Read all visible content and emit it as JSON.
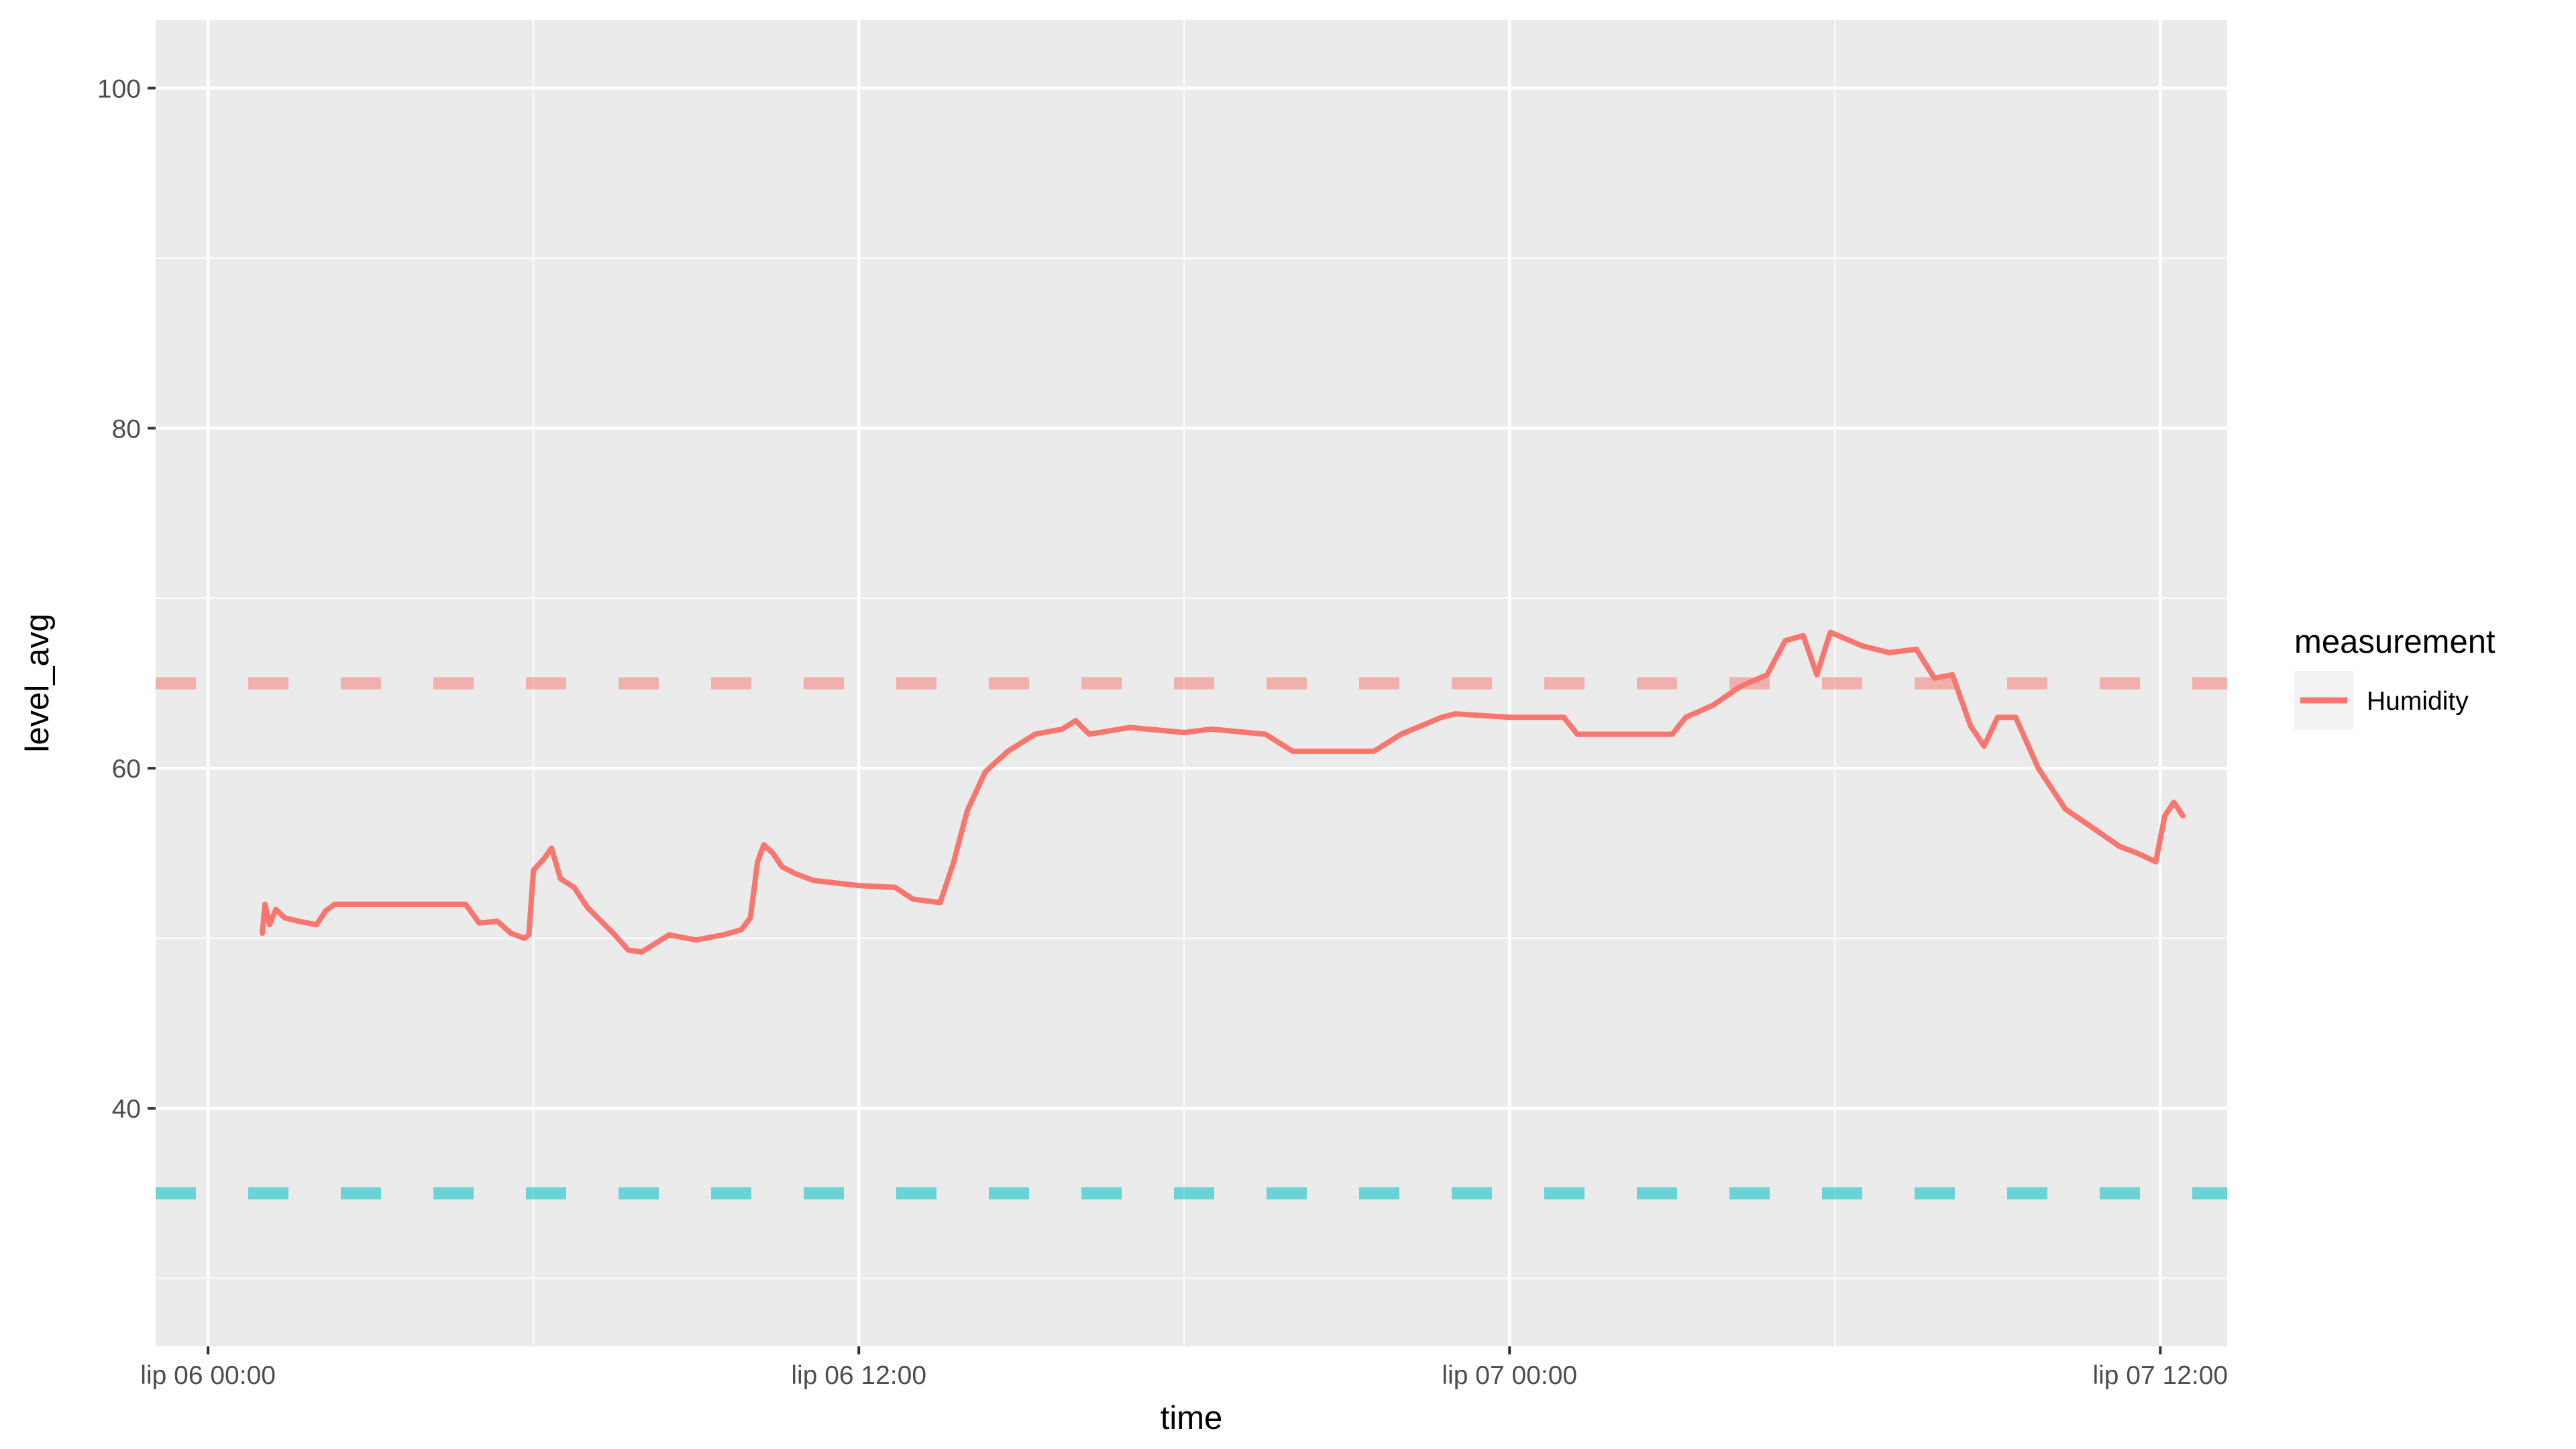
{
  "chart_data": {
    "type": "line",
    "xlabel": "time",
    "ylabel": "level_avg",
    "x_range": [
      "2017-07-05T23:02",
      "2017-07-07T13:14"
    ],
    "ylim": [
      26,
      104
    ],
    "x_ticks": [
      {
        "at": "2017-07-06T00:00",
        "label": "lip 06 00:00"
      },
      {
        "at": "2017-07-06T12:00",
        "label": "lip 06 12:00"
      },
      {
        "at": "2017-07-07T00:00",
        "label": "lip 07 00:00"
      },
      {
        "at": "2017-07-07T12:00",
        "label": "lip 07 12:00"
      }
    ],
    "x_minor_ticks": [
      "2017-07-06T06:00",
      "2017-07-06T18:00",
      "2017-07-07T06:00"
    ],
    "y_ticks": [
      40,
      60,
      80,
      100
    ],
    "y_minor_ticks": [
      30,
      50,
      70,
      90
    ],
    "grid": true,
    "legend": {
      "title": "measurement",
      "position": "right"
    },
    "series": [
      {
        "name": "Humidity",
        "color": "#F8766D",
        "points": [
          [
            "2017-07-06T01:00",
            50.3
          ],
          [
            "2017-07-06T01:03",
            52.0
          ],
          [
            "2017-07-06T01:08",
            50.8
          ],
          [
            "2017-07-06T01:15",
            51.7
          ],
          [
            "2017-07-06T01:25",
            51.2
          ],
          [
            "2017-07-06T01:40",
            51.0
          ],
          [
            "2017-07-06T02:00",
            50.8
          ],
          [
            "2017-07-06T02:10",
            51.6
          ],
          [
            "2017-07-06T02:20",
            52.0
          ],
          [
            "2017-07-06T03:00",
            52.0
          ],
          [
            "2017-07-06T04:00",
            52.0
          ],
          [
            "2017-07-06T04:45",
            52.0
          ],
          [
            "2017-07-06T05:00",
            50.9
          ],
          [
            "2017-07-06T05:20",
            51.0
          ],
          [
            "2017-07-06T05:35",
            50.3
          ],
          [
            "2017-07-06T05:50",
            50.0
          ],
          [
            "2017-07-06T05:55",
            50.2
          ],
          [
            "2017-07-06T06:00",
            54.0
          ],
          [
            "2017-07-06T06:12",
            54.7
          ],
          [
            "2017-07-06T06:20",
            55.3
          ],
          [
            "2017-07-06T06:30",
            53.5
          ],
          [
            "2017-07-06T06:45",
            53.0
          ],
          [
            "2017-07-06T07:00",
            51.8
          ],
          [
            "2017-07-06T07:15",
            51.0
          ],
          [
            "2017-07-06T07:30",
            50.2
          ],
          [
            "2017-07-06T07:45",
            49.3
          ],
          [
            "2017-07-06T08:00",
            49.2
          ],
          [
            "2017-07-06T08:30",
            50.2
          ],
          [
            "2017-07-06T09:00",
            49.9
          ],
          [
            "2017-07-06T09:30",
            50.2
          ],
          [
            "2017-07-06T09:50",
            50.5
          ],
          [
            "2017-07-06T10:00",
            51.2
          ],
          [
            "2017-07-06T10:08",
            54.5
          ],
          [
            "2017-07-06T10:15",
            55.5
          ],
          [
            "2017-07-06T10:25",
            55.0
          ],
          [
            "2017-07-06T10:35",
            54.2
          ],
          [
            "2017-07-06T10:50",
            53.8
          ],
          [
            "2017-07-06T11:10",
            53.4
          ],
          [
            "2017-07-06T12:00",
            53.1
          ],
          [
            "2017-07-06T12:40",
            53.0
          ],
          [
            "2017-07-06T13:00",
            52.3
          ],
          [
            "2017-07-06T13:30",
            52.1
          ],
          [
            "2017-07-06T13:45",
            54.5
          ],
          [
            "2017-07-06T14:00",
            57.5
          ],
          [
            "2017-07-06T14:20",
            59.8
          ],
          [
            "2017-07-06T14:45",
            61.0
          ],
          [
            "2017-07-06T15:15",
            62.0
          ],
          [
            "2017-07-06T15:45",
            62.3
          ],
          [
            "2017-07-06T16:00",
            62.8
          ],
          [
            "2017-07-06T16:15",
            62.0
          ],
          [
            "2017-07-06T17:00",
            62.4
          ],
          [
            "2017-07-06T18:00",
            62.1
          ],
          [
            "2017-07-06T18:30",
            62.3
          ],
          [
            "2017-07-06T19:30",
            62.0
          ],
          [
            "2017-07-06T20:00",
            61.0
          ],
          [
            "2017-07-06T21:30",
            61.0
          ],
          [
            "2017-07-06T22:00",
            62.0
          ],
          [
            "2017-07-06T22:45",
            63.0
          ],
          [
            "2017-07-06T23:00",
            63.2
          ],
          [
            "2017-07-07T00:00",
            63.0
          ],
          [
            "2017-07-07T01:00",
            63.0
          ],
          [
            "2017-07-07T01:15",
            62.0
          ],
          [
            "2017-07-07T02:00",
            62.0
          ],
          [
            "2017-07-07T03:00",
            62.0
          ],
          [
            "2017-07-07T03:15",
            63.0
          ],
          [
            "2017-07-07T03:45",
            63.7
          ],
          [
            "2017-07-07T04:15",
            64.8
          ],
          [
            "2017-07-07T04:45",
            65.5
          ],
          [
            "2017-07-07T05:05",
            67.5
          ],
          [
            "2017-07-07T05:25",
            67.8
          ],
          [
            "2017-07-07T05:40",
            65.5
          ],
          [
            "2017-07-07T05:55",
            68.0
          ],
          [
            "2017-07-07T06:30",
            67.2
          ],
          [
            "2017-07-07T07:00",
            66.8
          ],
          [
            "2017-07-07T07:30",
            67.0
          ],
          [
            "2017-07-07T07:50",
            65.3
          ],
          [
            "2017-07-07T08:10",
            65.5
          ],
          [
            "2017-07-07T08:30",
            62.5
          ],
          [
            "2017-07-07T08:45",
            61.3
          ],
          [
            "2017-07-07T09:00",
            63.0
          ],
          [
            "2017-07-07T09:20",
            63.0
          ],
          [
            "2017-07-07T09:45",
            60.0
          ],
          [
            "2017-07-07T10:15",
            57.6
          ],
          [
            "2017-07-07T10:45",
            56.5
          ],
          [
            "2017-07-07T11:15",
            55.4
          ],
          [
            "2017-07-07T11:35",
            55.0
          ],
          [
            "2017-07-07T11:55",
            54.5
          ],
          [
            "2017-07-07T12:05",
            57.2
          ],
          [
            "2017-07-07T12:15",
            58.0
          ],
          [
            "2017-07-07T12:25",
            57.2
          ]
        ]
      }
    ],
    "reference_lines": [
      {
        "y": 65,
        "color": "#F8766D",
        "style": "dashed"
      },
      {
        "y": 35,
        "color": "#00BFC4",
        "style": "dashed"
      }
    ]
  }
}
